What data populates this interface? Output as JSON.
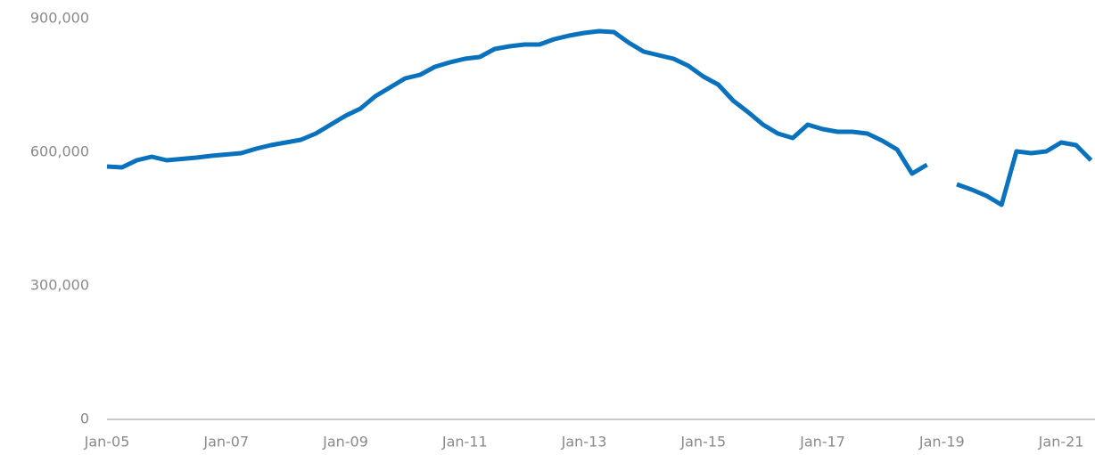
{
  "chart_data": {
    "type": "line",
    "categories": [
      "Jan-05",
      null,
      null,
      null,
      null,
      null,
      null,
      null,
      "Jan-07",
      null,
      null,
      null,
      null,
      null,
      null,
      null,
      "Jan-09",
      null,
      null,
      null,
      null,
      null,
      null,
      null,
      "Jan-11",
      null,
      null,
      null,
      null,
      null,
      null,
      null,
      "Jan-13",
      null,
      null,
      null,
      null,
      null,
      null,
      null,
      "Jan-15",
      null,
      null,
      null,
      null,
      null,
      null,
      null,
      "Jan-17",
      null,
      null,
      null,
      null,
      null,
      null,
      null,
      "Jan-19",
      null,
      null,
      null,
      null,
      null,
      null,
      null,
      "Jan-21",
      null,
      null
    ],
    "series": [
      {
        "color": "#0a72bd",
        "values": [
          568000,
          566000,
          582000,
          590000,
          582000,
          585000,
          588000,
          592000,
          595000,
          598000,
          608000,
          616000,
          622000,
          628000,
          642000,
          662000,
          682000,
          698000,
          726000,
          746000,
          766000,
          774000,
          792000,
          802000,
          810000,
          814000,
          832000,
          838000,
          842000,
          842000,
          854000,
          862000,
          868000,
          872000,
          870000,
          846000,
          826000,
          818000,
          810000,
          794000,
          770000,
          752000,
          716000,
          690000,
          662000,
          642000,
          632000,
          662000,
          652000,
          646000,
          646000,
          642000,
          626000,
          606000,
          552000,
          572000,
          null,
          528000,
          516000,
          502000,
          482000,
          602000,
          598000,
          602000,
          622000,
          616000,
          582000
        ]
      }
    ],
    "ylim": [
      0,
      900000
    ],
    "yticks": [
      0,
      {
        "value": 300000,
        "label": "300,000"
      },
      {
        "value": 600000,
        "label": "600,000"
      },
      {
        "value": 900000,
        "label": "900,000"
      }
    ]
  }
}
